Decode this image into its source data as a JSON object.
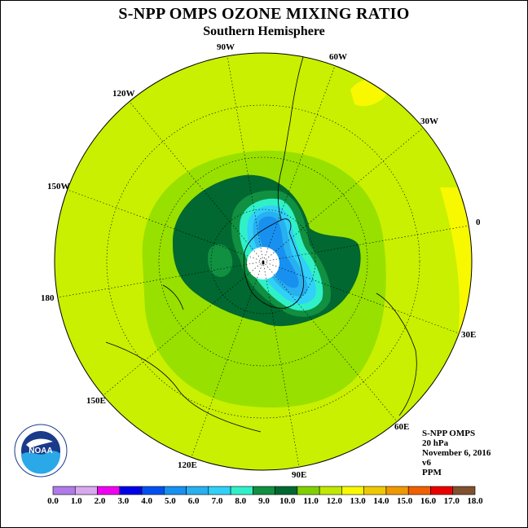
{
  "title": "S-NPP OMPS OZONE MIXING RATIO",
  "subtitle": "Southern Hemisphere",
  "longitude_labels": {
    "lon_90w": "90W",
    "lon_60w": "60W",
    "lon_30w": "30W",
    "lon_0": "0",
    "lon_30e": "30E",
    "lon_60e": "60E",
    "lon_90e": "90E",
    "lon_120e": "120E",
    "lon_150e": "150E",
    "lon_180": "180",
    "lon_150w": "150W",
    "lon_120w": "120W"
  },
  "info": {
    "instrument": "S-NPP OMPS",
    "pressure": "20 hPa",
    "date": "November 6, 2016",
    "version": "v6",
    "units": "PPM"
  },
  "logo": {
    "text": "NOAA"
  },
  "colorbar": {
    "labels": [
      "0.0",
      "1.0",
      "2.0",
      "3.0",
      "4.0",
      "5.0",
      "6.0",
      "7.0",
      "8.0",
      "9.0",
      "10.0",
      "11.0",
      "12.0",
      "13.0",
      "14.0",
      "15.0",
      "16.0",
      "17.0",
      "18.0"
    ],
    "colors": [
      "#b07be8",
      "#d8a8f0",
      "#f000f0",
      "#0000e8",
      "#0050f0",
      "#1890f0",
      "#28b0f0",
      "#30d0f8",
      "#30f0c8",
      "#109040",
      "#006830",
      "#80d000",
      "#c0e800",
      "#f8f800",
      "#f0c800",
      "#f09800",
      "#f06000",
      "#e80000",
      "#805030"
    ]
  },
  "map_colors": {
    "background_level": "#c8f000",
    "band_11": "#98e000",
    "band_10": "#006830",
    "band_9": "#109040",
    "band_8": "#30f0c8",
    "band_7": "#30d0f8",
    "band_6": "#28b0f0",
    "band_5": "#1890f0",
    "band_13": "#f8f800"
  }
}
